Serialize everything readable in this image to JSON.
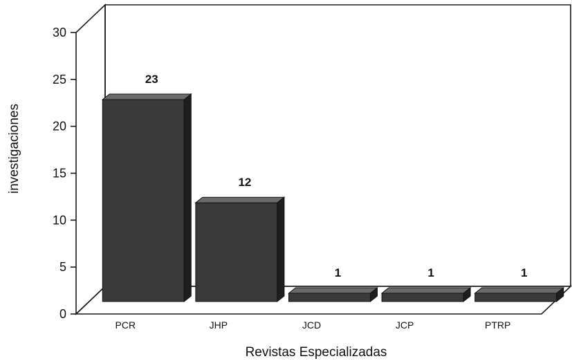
{
  "chart_data": {
    "type": "bar",
    "categories": [
      "PCR",
      "JHP",
      "JCD",
      "JCP",
      "PTRP"
    ],
    "values": [
      23,
      12,
      1,
      1,
      1
    ],
    "data_labels": [
      "23",
      "12",
      "1",
      "1",
      "1"
    ],
    "yticks": [
      "0",
      "5",
      "10",
      "15",
      "20",
      "25",
      "30"
    ],
    "ylim": [
      0,
      30
    ],
    "xlabel": "Revistas Especializadas",
    "ylabel": "investigaciones",
    "grid": false,
    "style": "3d-bar",
    "colors": {
      "bar_front": "#3a3a3a",
      "bar_top": "#6a6a6a",
      "bar_side": "#1e1e1e",
      "axis": "#1a1a1a"
    }
  }
}
